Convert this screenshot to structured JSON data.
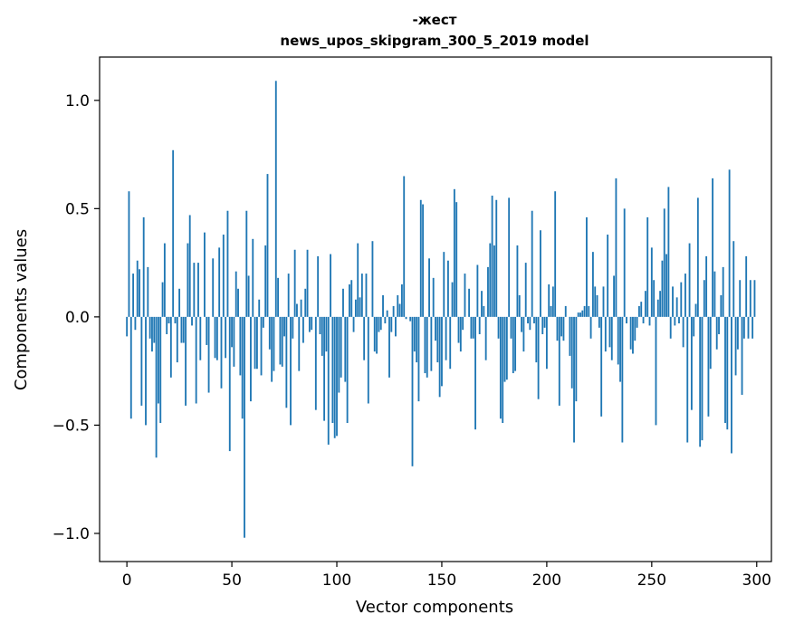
{
  "chart_data": {
    "type": "bar",
    "title": "-жест",
    "subtitle": "news_upos_skipgram_300_5_2019 model",
    "xlabel": "Vector components",
    "ylabel": "Components values",
    "xlim": [
      -13,
      307
    ],
    "ylim": [
      -1.13,
      1.2
    ],
    "xticks": [
      0,
      50,
      100,
      150,
      200,
      250,
      300
    ],
    "xtick_labels": [
      "0",
      "50",
      "100",
      "150",
      "200",
      "250",
      "300"
    ],
    "yticks": [
      -1.0,
      -0.5,
      0.0,
      0.5,
      1.0
    ],
    "ytick_labels": [
      "−1.0",
      "−0.5",
      "0.0",
      "0.5",
      "1.0"
    ],
    "bar_color": "#1f77b4",
    "grid": false,
    "values": [
      -0.09,
      0.58,
      -0.47,
      0.2,
      -0.06,
      0.26,
      0.22,
      -0.41,
      0.46,
      -0.5,
      0.23,
      -0.1,
      -0.16,
      -0.12,
      -0.65,
      -0.4,
      -0.49,
      0.16,
      0.34,
      -0.08,
      -0.03,
      -0.28,
      0.77,
      -0.03,
      -0.21,
      0.13,
      -0.12,
      -0.12,
      -0.41,
      0.34,
      0.47,
      -0.04,
      0.25,
      -0.4,
      0.25,
      -0.2,
      0.0,
      0.39,
      -0.13,
      -0.35,
      0.0,
      0.27,
      -0.19,
      -0.2,
      0.32,
      -0.33,
      0.38,
      -0.19,
      0.49,
      -0.62,
      -0.14,
      -0.23,
      0.21,
      0.13,
      -0.27,
      -0.47,
      -1.02,
      0.49,
      0.19,
      -0.39,
      0.36,
      -0.24,
      -0.24,
      0.08,
      -0.27,
      -0.05,
      0.33,
      0.66,
      -0.15,
      -0.3,
      -0.25,
      1.09,
      0.18,
      -0.22,
      -0.23,
      -0.09,
      -0.42,
      0.2,
      -0.5,
      -0.1,
      0.31,
      0.06,
      -0.25,
      0.08,
      -0.12,
      0.13,
      0.31,
      -0.07,
      -0.06,
      0.0,
      -0.43,
      0.28,
      -0.08,
      -0.18,
      -0.48,
      -0.16,
      -0.59,
      0.29,
      -0.49,
      -0.56,
      -0.55,
      -0.35,
      -0.28,
      0.13,
      -0.3,
      -0.49,
      0.15,
      0.17,
      -0.07,
      0.08,
      0.34,
      0.09,
      0.2,
      -0.2,
      0.2,
      -0.4,
      0.0,
      0.35,
      -0.16,
      -0.17,
      -0.07,
      -0.06,
      0.1,
      -0.03,
      0.03,
      -0.28,
      -0.07,
      0.05,
      -0.09,
      0.1,
      0.06,
      0.15,
      0.65,
      -0.01,
      0.0,
      -0.02,
      -0.69,
      -0.16,
      -0.21,
      -0.39,
      0.54,
      0.52,
      -0.26,
      -0.28,
      0.27,
      -0.25,
      0.18,
      -0.11,
      -0.21,
      -0.37,
      -0.32,
      0.3,
      -0.2,
      0.26,
      -0.24,
      0.16,
      0.59,
      0.53,
      -0.12,
      -0.16,
      -0.06,
      0.2,
      0.0,
      0.13,
      -0.1,
      -0.1,
      -0.52,
      0.24,
      -0.08,
      0.12,
      0.05,
      -0.2,
      0.23,
      0.34,
      0.56,
      0.33,
      0.54,
      -0.1,
      -0.47,
      -0.49,
      -0.3,
      -0.29,
      0.55,
      -0.1,
      -0.26,
      -0.25,
      0.33,
      0.1,
      -0.07,
      -0.16,
      0.25,
      -0.03,
      -0.06,
      0.49,
      -0.03,
      -0.21,
      -0.38,
      0.4,
      -0.08,
      -0.05,
      -0.24,
      0.15,
      0.05,
      0.14,
      0.58,
      -0.11,
      -0.41,
      -0.09,
      -0.11,
      0.05,
      0.0,
      -0.18,
      -0.33,
      -0.58,
      -0.39,
      0.02,
      0.02,
      0.03,
      0.05,
      0.46,
      0.05,
      -0.1,
      0.3,
      0.14,
      0.1,
      -0.05,
      -0.46,
      0.14,
      -0.16,
      0.38,
      -0.14,
      -0.2,
      0.19,
      0.64,
      -0.22,
      -0.3,
      -0.58,
      0.5,
      -0.03,
      0.0,
      -0.15,
      -0.17,
      -0.11,
      -0.05,
      0.05,
      0.07,
      -0.03,
      0.12,
      0.46,
      -0.04,
      0.32,
      0.17,
      -0.5,
      0.08,
      0.12,
      0.26,
      0.5,
      0.29,
      0.6,
      -0.1,
      0.14,
      -0.04,
      0.09,
      -0.03,
      0.16,
      -0.14,
      0.2,
      -0.58,
      0.34,
      -0.43,
      -0.09,
      0.06,
      0.55,
      -0.6,
      -0.57,
      0.17,
      0.28,
      -0.46,
      -0.24,
      0.64,
      0.21,
      -0.15,
      -0.08,
      0.1,
      0.23,
      -0.49,
      -0.52,
      0.68,
      -0.63,
      0.35,
      -0.27,
      -0.15,
      0.17,
      -0.36,
      -0.1,
      0.28,
      -0.1,
      0.17,
      -0.1,
      0.17
    ]
  }
}
